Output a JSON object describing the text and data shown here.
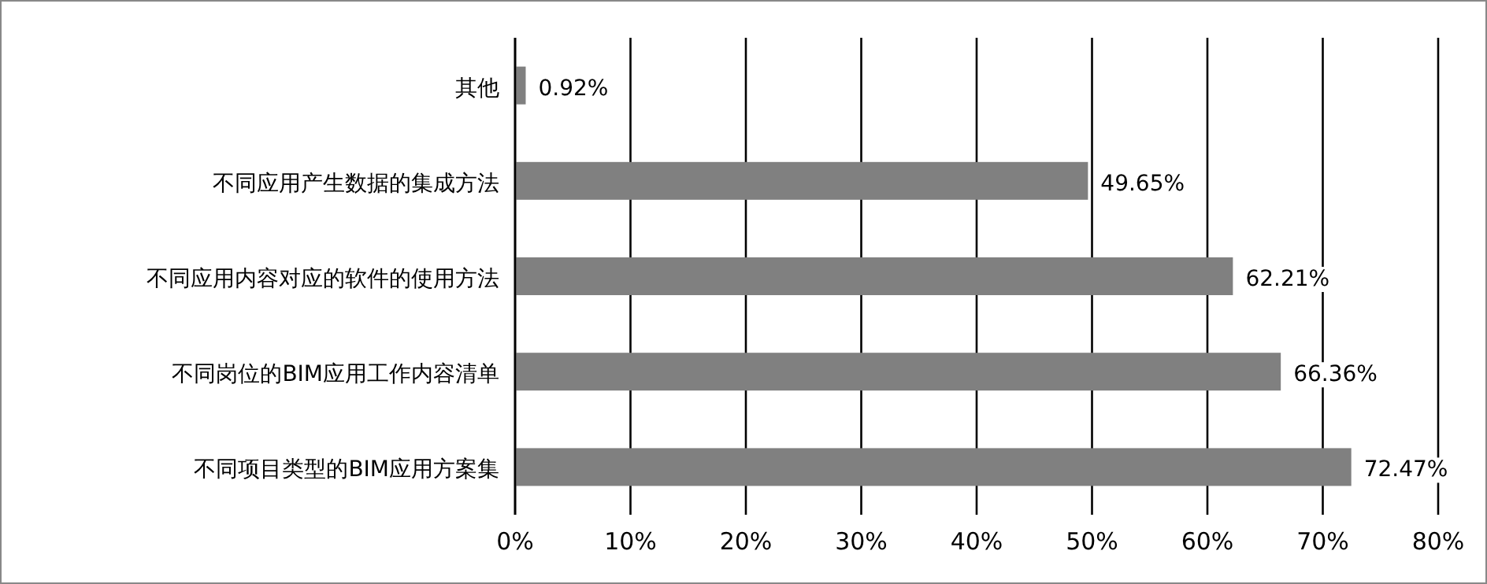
{
  "chart_data": {
    "type": "bar",
    "orientation": "horizontal",
    "categories": [
      "其他",
      "不同应用产生数据的集成方法",
      "不同应用内容对应的软件的使用方法",
      "不同岗位的BIM应用工作内容清单",
      "不同项目类型的BIM应用方案集"
    ],
    "values": [
      0.92,
      49.65,
      62.21,
      66.36,
      72.47
    ],
    "value_labels": [
      "0.92%",
      "49.65%",
      "62.21%",
      "66.36%",
      "72.47%"
    ],
    "color": "#808080",
    "xlim": [
      0,
      80
    ],
    "xticks": [
      {
        "value": 0,
        "label": "0%"
      },
      {
        "value": 10,
        "label": "10%"
      },
      {
        "value": 20,
        "label": "20%"
      },
      {
        "value": 30,
        "label": "30%"
      },
      {
        "value": 40,
        "label": "40%"
      },
      {
        "value": 50,
        "label": "50%"
      },
      {
        "value": 60,
        "label": "60%"
      },
      {
        "value": 70,
        "label": "70%"
      },
      {
        "value": 80,
        "label": "80%"
      }
    ],
    "grid": "x"
  }
}
